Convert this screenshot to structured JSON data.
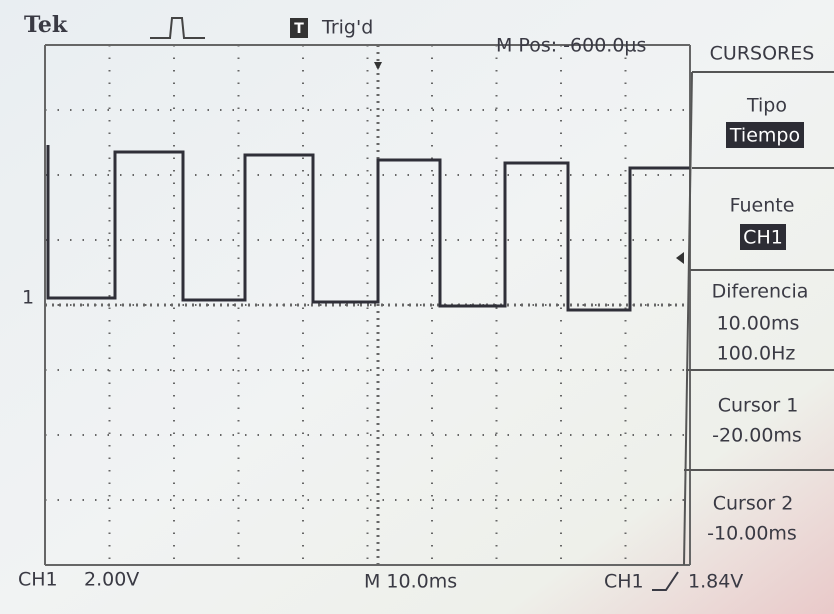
{
  "header": {
    "brand": "Tek",
    "trigger_icon": "T",
    "trigger_status": "Trig'd",
    "position": "M Pos: -600.0µs"
  },
  "menu": {
    "title": "CURSORES",
    "items": [
      {
        "label": "Tipo",
        "value": "Tiempo"
      },
      {
        "label": "Fuente",
        "value": "CH1"
      },
      {
        "label": "Diferencia",
        "values": [
          "10.00ms",
          "100.0Hz"
        ]
      },
      {
        "label": "Cursor 1",
        "value": "-20.00ms"
      },
      {
        "label": "Cursor 2",
        "value": "-10.00ms"
      }
    ]
  },
  "screen": {
    "channel_marker": "1"
  },
  "footer": {
    "channel": "CH1",
    "volts_div": "2.00V",
    "time_div": "M 10.0ms",
    "trigger_channel": "CH1",
    "trigger_level": "1.84V"
  }
}
